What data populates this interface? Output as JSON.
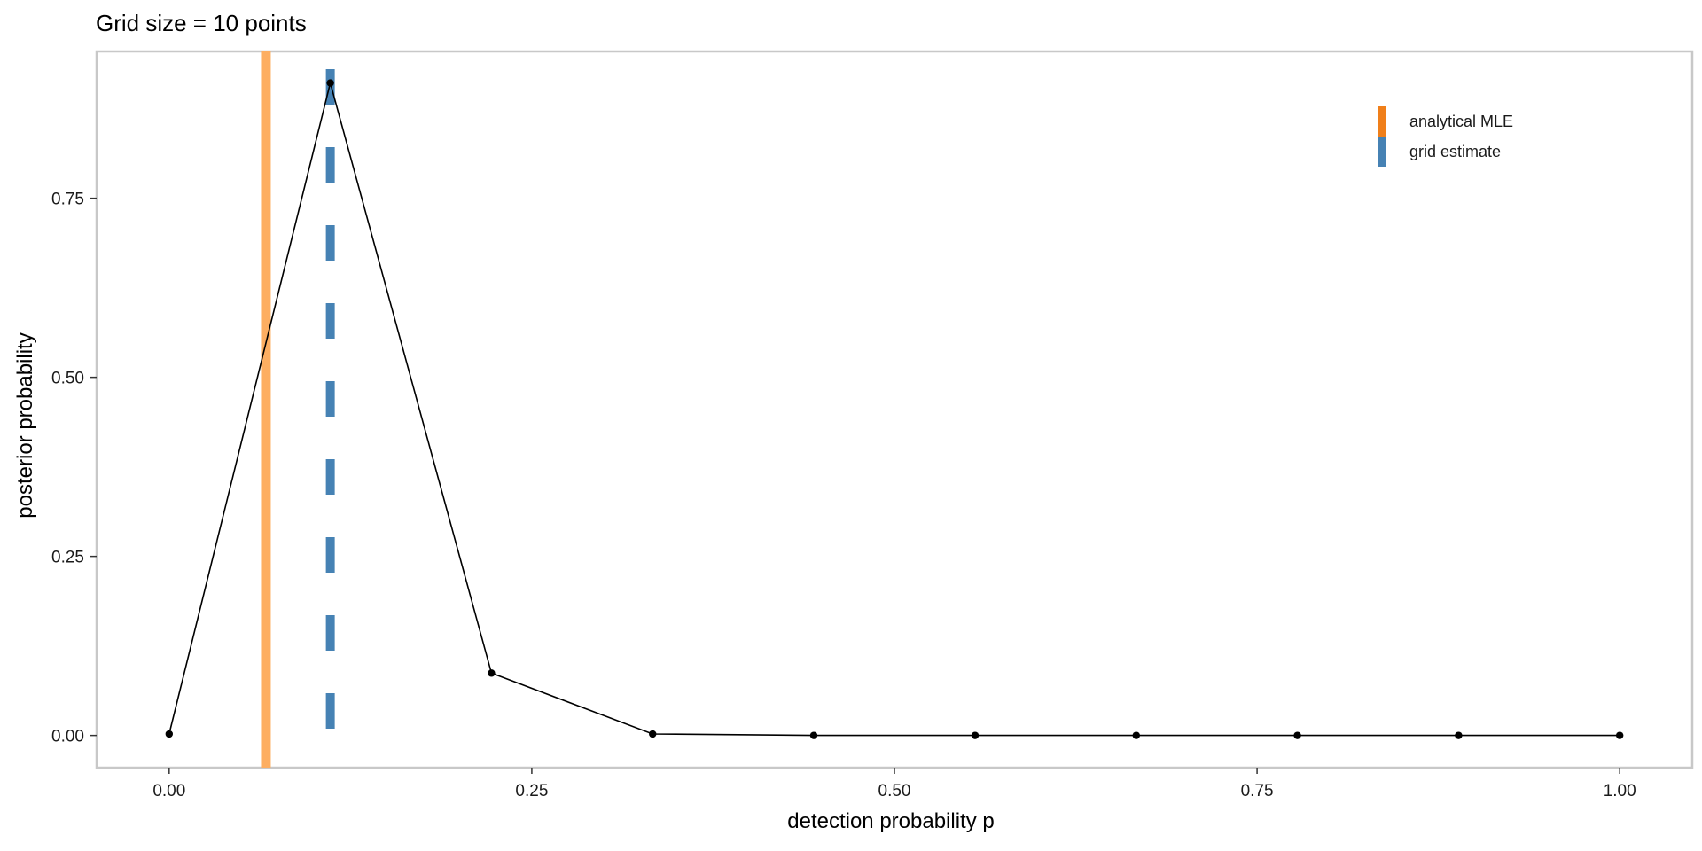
{
  "chart_data": {
    "type": "line",
    "title": "Grid size = 10 points",
    "xlabel": "detection probability p",
    "ylabel": "posterior probability",
    "xlim": [
      -0.05,
      1.05
    ],
    "ylim": [
      -0.045,
      0.955
    ],
    "x_ticks": [
      0.0,
      0.25,
      0.5,
      0.75,
      1.0
    ],
    "x_tick_labels": [
      "0.00",
      "0.25",
      "0.50",
      "0.75",
      "1.00"
    ],
    "y_ticks": [
      0.0,
      0.25,
      0.5,
      0.75
    ],
    "y_tick_labels": [
      "0.00",
      "0.25",
      "0.50",
      "0.75"
    ],
    "grid": false,
    "legend_position": "top-right",
    "series": [
      {
        "x": [
          0.0,
          0.1111,
          0.2222,
          0.3333,
          0.4444,
          0.5556,
          0.6667,
          0.7778,
          0.8889,
          1.0
        ],
        "y": [
          0.002,
          0.911,
          0.087,
          0.002,
          0.0,
          0.0,
          0.0,
          0.0,
          0.0,
          0.0
        ],
        "color": "#000000"
      }
    ],
    "vlines": [
      {
        "name": "analytical MLE",
        "x": 0.0667,
        "color": "#FDAE61",
        "legend_color": "#F07F1A",
        "style": "solid"
      },
      {
        "name": "grid estimate",
        "x": 0.1111,
        "color": "#4682B4",
        "legend_color": "#4682B4",
        "style": "dashed"
      }
    ]
  }
}
